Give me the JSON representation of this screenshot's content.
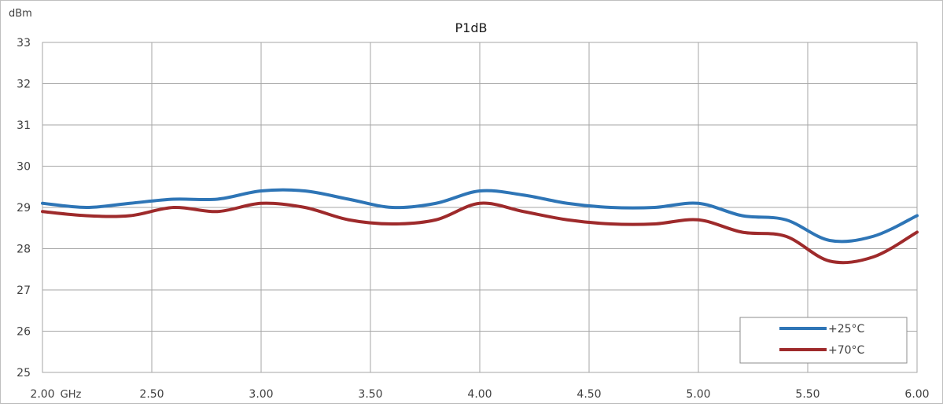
{
  "chart_data": {
    "type": "line",
    "title": "P1dB",
    "ylabel": "dBm",
    "xlabel": "GHz",
    "xlim": [
      2.0,
      6.0
    ],
    "ylim": [
      25,
      33
    ],
    "xticks": [
      "2.00",
      "2.50",
      "3.00",
      "3.50",
      "4.00",
      "4.50",
      "5.00",
      "5.50",
      "6.00"
    ],
    "yticks": [
      "25",
      "26",
      "27",
      "28",
      "29",
      "30",
      "31",
      "32",
      "33"
    ],
    "grid": true,
    "legend_position": "bottom-right",
    "series": [
      {
        "name": "+25°C",
        "color": "#2e75b6",
        "x": [
          2.0,
          2.2,
          2.4,
          2.6,
          2.8,
          3.0,
          3.2,
          3.4,
          3.6,
          3.8,
          4.0,
          4.2,
          4.4,
          4.6,
          4.8,
          5.0,
          5.2,
          5.4,
          5.6,
          5.8,
          6.0
        ],
        "y": [
          29.1,
          29.0,
          29.1,
          29.2,
          29.2,
          29.4,
          29.4,
          29.2,
          29.0,
          29.1,
          29.4,
          29.3,
          29.1,
          29.0,
          29.0,
          29.1,
          28.8,
          28.7,
          28.2,
          28.3,
          28.8
        ]
      },
      {
        "name": "+70°C",
        "color": "#9e2a2b",
        "x": [
          2.0,
          2.2,
          2.4,
          2.6,
          2.8,
          3.0,
          3.2,
          3.4,
          3.6,
          3.8,
          4.0,
          4.2,
          4.4,
          4.6,
          4.8,
          5.0,
          5.2,
          5.4,
          5.6,
          5.8,
          6.0
        ],
        "y": [
          28.9,
          28.8,
          28.8,
          29.0,
          28.9,
          29.1,
          29.0,
          28.7,
          28.6,
          28.7,
          29.1,
          28.9,
          28.7,
          28.6,
          28.6,
          28.7,
          28.4,
          28.3,
          27.7,
          27.8,
          28.4
        ]
      }
    ]
  }
}
